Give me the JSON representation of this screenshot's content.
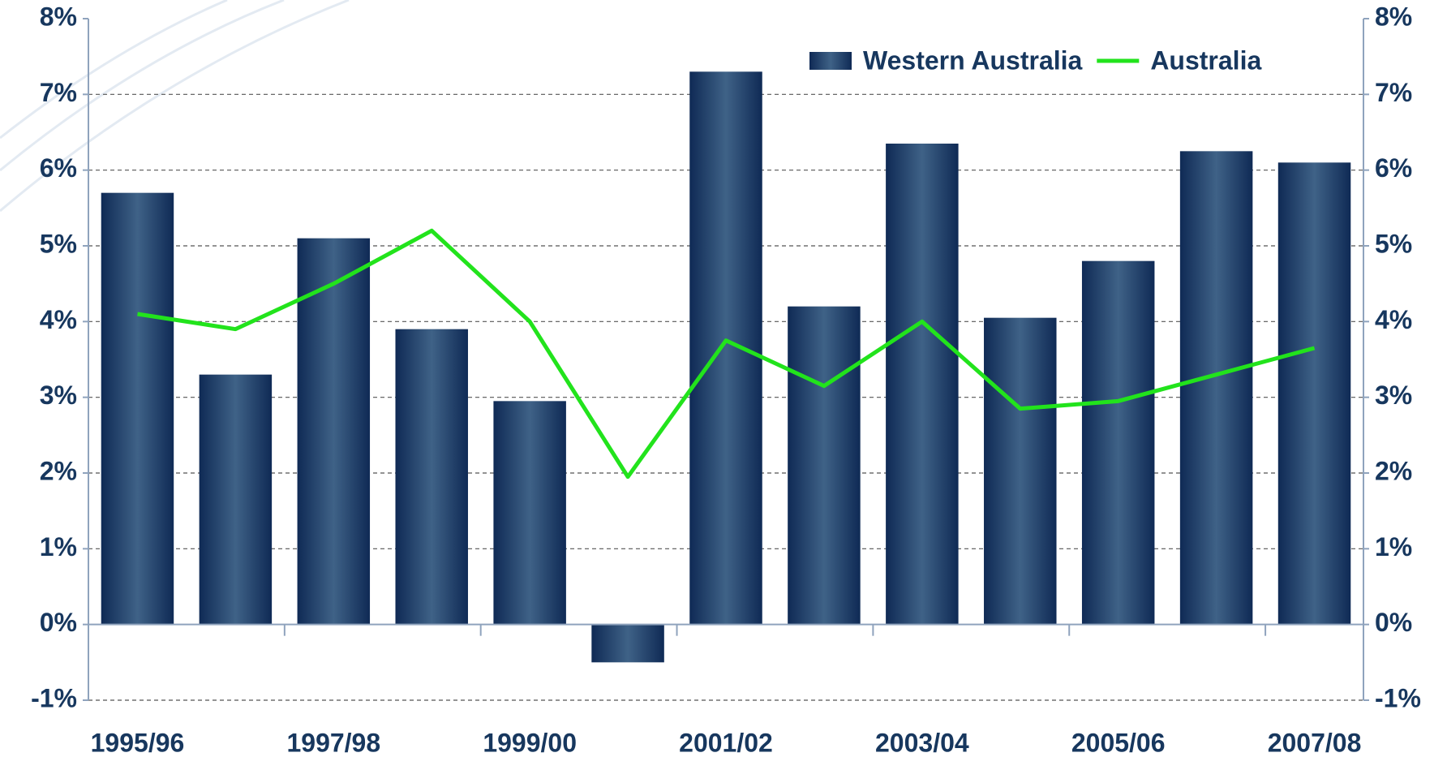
{
  "chart_data": {
    "type": "bar",
    "categories": [
      "1995/96",
      null,
      "1997/98",
      null,
      "1999/00",
      null,
      "2001/02",
      null,
      "2003/04",
      null,
      "2005/06",
      null,
      "2007/08"
    ],
    "series": [
      {
        "name": "Western Australia",
        "type": "bar",
        "color": "#17375e",
        "values": [
          5.7,
          3.3,
          5.1,
          3.9,
          2.95,
          -0.5,
          7.3,
          4.2,
          6.35,
          4.05,
          4.8,
          6.25,
          6.1
        ]
      },
      {
        "name": "Australia",
        "type": "line",
        "color": "#22e31c",
        "values": [
          4.1,
          3.9,
          4.5,
          5.2,
          4.0,
          1.95,
          3.75,
          3.15,
          4.0,
          2.85,
          2.95,
          3.3,
          3.65
        ]
      }
    ],
    "ylim": [
      -1,
      8
    ],
    "yticks": [
      {
        "value": -1,
        "label": "-1%"
      },
      {
        "value": 0,
        "label": "0%"
      },
      {
        "value": 1,
        "label": "1%"
      },
      {
        "value": 2,
        "label": "2%"
      },
      {
        "value": 3,
        "label": "3%"
      },
      {
        "value": 4,
        "label": "4%"
      },
      {
        "value": 5,
        "label": "5%"
      },
      {
        "value": 6,
        "label": "6%"
      },
      {
        "value": 7,
        "label": "7%"
      },
      {
        "value": 8,
        "label": "8%"
      }
    ],
    "y2lim": [
      -1,
      8
    ],
    "y2ticks": [
      {
        "value": -1,
        "label": "-1%"
      },
      {
        "value": 0,
        "label": "0%"
      },
      {
        "value": 1,
        "label": "1%"
      },
      {
        "value": 2,
        "label": "2%"
      },
      {
        "value": 3,
        "label": "3%"
      },
      {
        "value": 4,
        "label": "4%"
      },
      {
        "value": 5,
        "label": "5%"
      },
      {
        "value": 6,
        "label": "6%"
      },
      {
        "value": 7,
        "label": "7%"
      },
      {
        "value": 8,
        "label": "8%"
      }
    ],
    "grid": true,
    "legend": "top-right"
  }
}
